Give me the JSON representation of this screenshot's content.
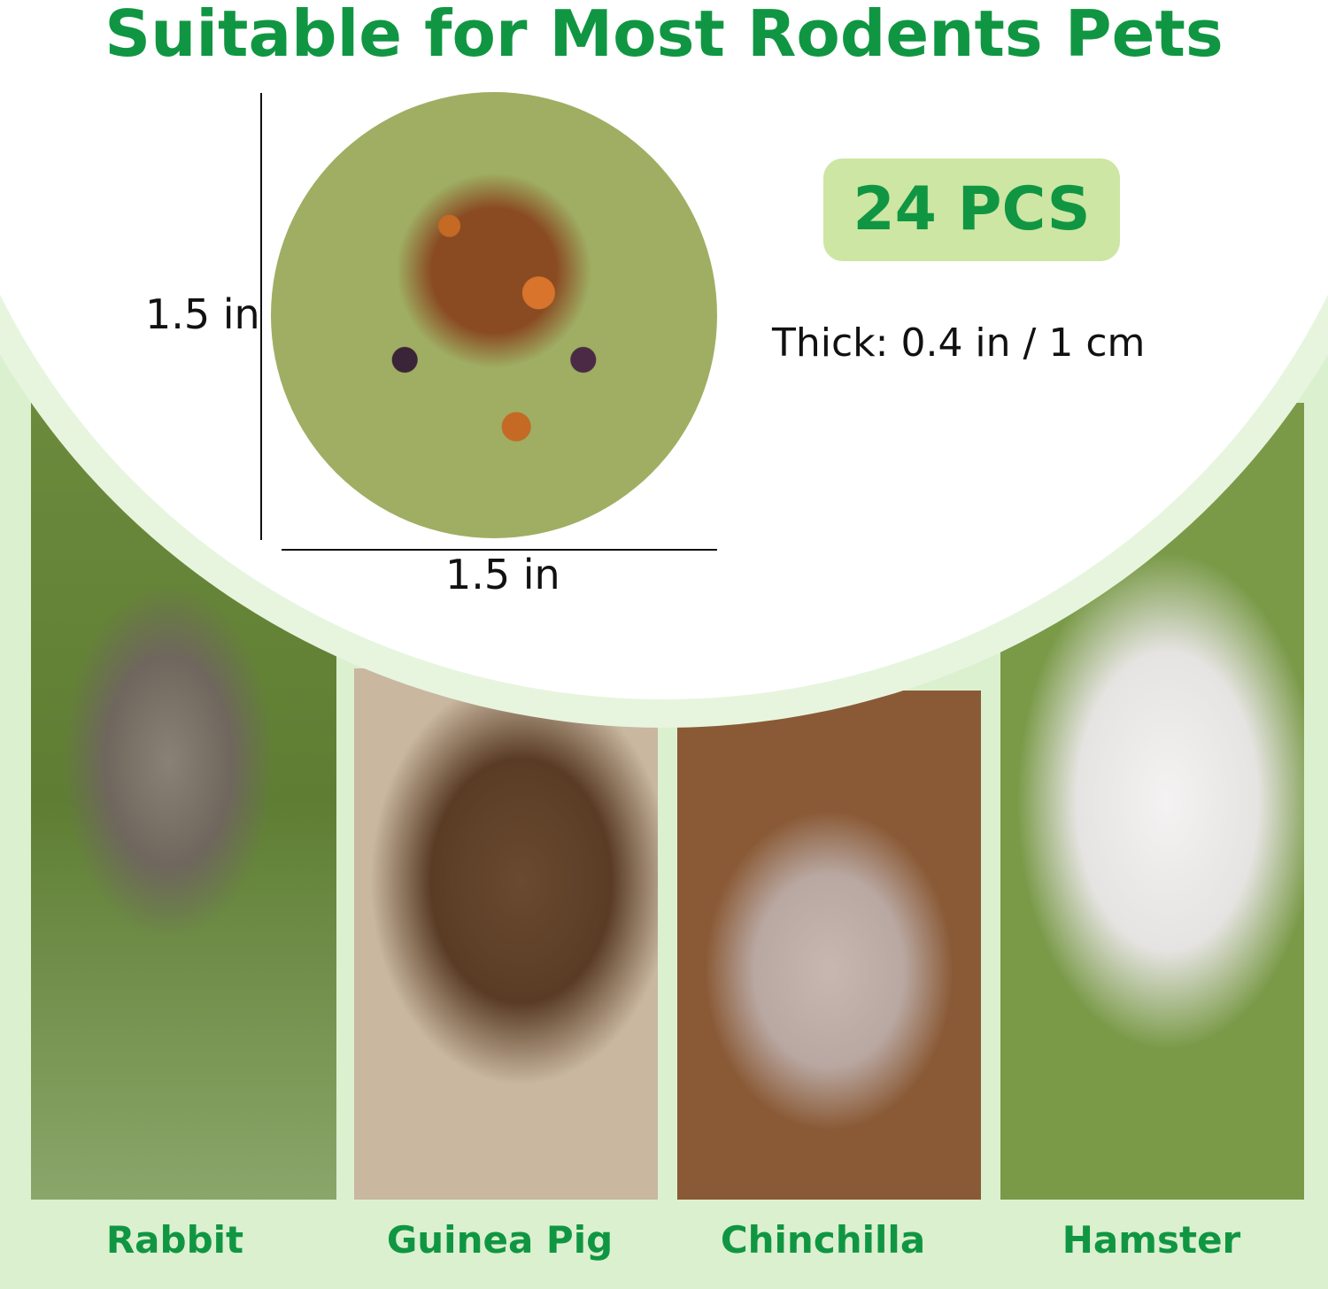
{
  "title": "Suitable for Most Rodents Pets",
  "product": {
    "height_label": "1.5 in",
    "width_label": "1.5 in",
    "count_badge": "24 PCS",
    "thickness": "Thick: 0.4 in / 1 cm"
  },
  "pets": [
    {
      "label": "Rabbit"
    },
    {
      "label": "Guinea Pig"
    },
    {
      "label": "Chinchilla"
    },
    {
      "label": "Hamster"
    }
  ],
  "colors": {
    "brand_green": "#109642",
    "badge_bg": "#cde6a3",
    "background": "#dbf0cf"
  }
}
